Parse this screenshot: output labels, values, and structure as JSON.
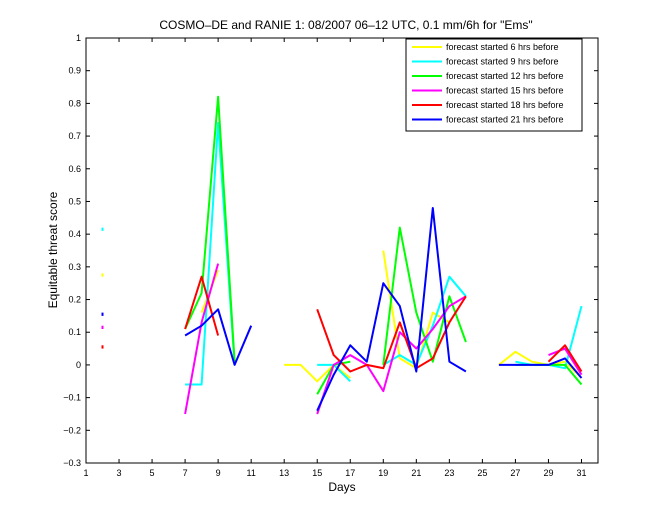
{
  "chart_data": {
    "type": "line",
    "title": "COSMO–DE and RANIE 1: 08/2007 06–12 UTC, 0.1 mm/6h for \"Ems\"",
    "xlabel": "Days",
    "ylabel": "Equitable threat score",
    "xlim": [
      1,
      32
    ],
    "ylim": [
      -0.3,
      1
    ],
    "xticks": [
      1,
      3,
      5,
      7,
      9,
      11,
      13,
      15,
      17,
      19,
      21,
      23,
      25,
      27,
      29,
      31
    ],
    "yticks": [
      -0.3,
      -0.2,
      -0.1,
      0,
      0.1,
      0.2,
      0.3,
      0.4,
      0.5,
      0.6,
      0.7,
      0.8,
      0.9,
      1
    ],
    "ytick_labels": [
      "−0.3",
      "−0.2",
      "−0.1",
      "0",
      "0.1",
      "0.2",
      "0.3",
      "0.4",
      "0.5",
      "0.6",
      "0.7",
      "0.8",
      "0.9",
      "1"
    ],
    "legend_position": "top-right",
    "series": [
      {
        "name": "forecast started 6 hrs before",
        "color": "#ffff00",
        "points": [
          [
            2,
            0.28
          ],
          [
            2,
            0.27
          ],
          [
            null,
            null
          ],
          [
            8,
            0.16
          ],
          [
            9,
            0.29
          ],
          [
            null,
            null
          ],
          [
            13,
            0
          ],
          [
            14,
            0
          ],
          [
            15,
            -0.05
          ],
          [
            16,
            0
          ],
          [
            17,
            -0.04
          ],
          [
            null,
            null
          ],
          [
            19,
            0.35
          ],
          [
            20,
            0.02
          ],
          [
            21,
            -0.01
          ],
          [
            22,
            0.16
          ],
          [
            23,
            0.13
          ],
          [
            null,
            null
          ],
          [
            26,
            0
          ],
          [
            27,
            0.04
          ],
          [
            28,
            0.01
          ],
          [
            29,
            0
          ],
          [
            30,
            0.01
          ],
          [
            31,
            -0.04
          ]
        ]
      },
      {
        "name": "forecast started 9 hrs before",
        "color": "#00ffff",
        "points": [
          [
            2,
            0.42
          ],
          [
            2,
            0.41
          ],
          [
            null,
            null
          ],
          [
            7,
            -0.06
          ],
          [
            8,
            -0.06
          ],
          [
            9,
            0.74
          ],
          [
            10,
            0
          ],
          [
            null,
            null
          ],
          [
            15,
            0
          ],
          [
            16,
            0
          ],
          [
            17,
            -0.05
          ],
          [
            null,
            null
          ],
          [
            19,
            0
          ],
          [
            20,
            0.03
          ],
          [
            21,
            0
          ],
          [
            22,
            0.12
          ],
          [
            23,
            0.27
          ],
          [
            24,
            0.21
          ],
          [
            null,
            null
          ],
          [
            27,
            0.01
          ],
          [
            28,
            0
          ],
          [
            29,
            0
          ],
          [
            30,
            -0.01
          ],
          [
            31,
            0.18
          ]
        ]
      },
      {
        "name": "forecast started 12 hrs before",
        "color": "#00ff00",
        "points": [
          [
            7,
            0.11
          ],
          [
            8,
            0.22
          ],
          [
            9,
            0.82
          ],
          [
            10,
            0.01
          ],
          [
            null,
            null
          ],
          [
            15,
            -0.09
          ],
          [
            16,
            0
          ],
          [
            17,
            0.01
          ],
          [
            null,
            null
          ],
          [
            19,
            0
          ],
          [
            20,
            0.42
          ],
          [
            21,
            0.16
          ],
          [
            22,
            0.01
          ],
          [
            23,
            0.21
          ],
          [
            24,
            0.07
          ],
          [
            null,
            null
          ],
          [
            27,
            0
          ],
          [
            28,
            0
          ],
          [
            29,
            0
          ],
          [
            30,
            0
          ],
          [
            31,
            -0.06
          ]
        ]
      },
      {
        "name": "forecast started 15 hrs before",
        "color": "#ff00ff",
        "points": [
          [
            2,
            0.11
          ],
          [
            2,
            0.12
          ],
          [
            null,
            null
          ],
          [
            7,
            -0.15
          ],
          [
            8,
            0.13
          ],
          [
            9,
            0.31
          ],
          [
            null,
            null
          ],
          [
            15,
            -0.15
          ],
          [
            16,
            0
          ],
          [
            17,
            0.03
          ],
          [
            18,
            0
          ],
          [
            19,
            -0.08
          ],
          [
            20,
            0.1
          ],
          [
            21,
            0.05
          ],
          [
            22,
            0.11
          ],
          [
            23,
            0.18
          ],
          [
            24,
            0.21
          ],
          [
            null,
            null
          ],
          [
            29,
            0.03
          ],
          [
            30,
            0.05
          ],
          [
            31,
            -0.03
          ]
        ]
      },
      {
        "name": "forecast started 18 hrs before",
        "color": "#ff0000",
        "points": [
          [
            2,
            0.06
          ],
          [
            2,
            0.05
          ],
          [
            null,
            null
          ],
          [
            7,
            0.11
          ],
          [
            8,
            0.27
          ],
          [
            9,
            0.09
          ],
          [
            null,
            null
          ],
          [
            15,
            0.17
          ],
          [
            16,
            0.03
          ],
          [
            17,
            -0.02
          ],
          [
            18,
            0
          ],
          [
            19,
            -0.01
          ],
          [
            20,
            0.13
          ],
          [
            21,
            -0.01
          ],
          [
            22,
            0.02
          ],
          [
            23,
            0.13
          ],
          [
            24,
            0.21
          ],
          [
            null,
            null
          ],
          [
            29,
            0.01
          ],
          [
            30,
            0.06
          ],
          [
            31,
            -0.02
          ]
        ]
      },
      {
        "name": "forecast started 21 hrs before",
        "color": "#0000ff",
        "points": [
          [
            2,
            0.15
          ],
          [
            2,
            0.16
          ],
          [
            null,
            null
          ],
          [
            7,
            0.09
          ],
          [
            8,
            0.12
          ],
          [
            9,
            0.17
          ],
          [
            10,
            0
          ],
          [
            11,
            0.12
          ],
          [
            null,
            null
          ],
          [
            15,
            -0.14
          ],
          [
            16,
            -0.03
          ],
          [
            17,
            0.06
          ],
          [
            18,
            0.01
          ],
          [
            19,
            0.25
          ],
          [
            20,
            0.18
          ],
          [
            21,
            -0.02
          ],
          [
            22,
            0.48
          ],
          [
            23,
            0.01
          ],
          [
            24,
            -0.02
          ],
          [
            null,
            null
          ],
          [
            26,
            0
          ],
          [
            27,
            0
          ],
          [
            28,
            0
          ],
          [
            29,
            0
          ],
          [
            30,
            0.02
          ],
          [
            31,
            -0.04
          ]
        ]
      }
    ]
  }
}
